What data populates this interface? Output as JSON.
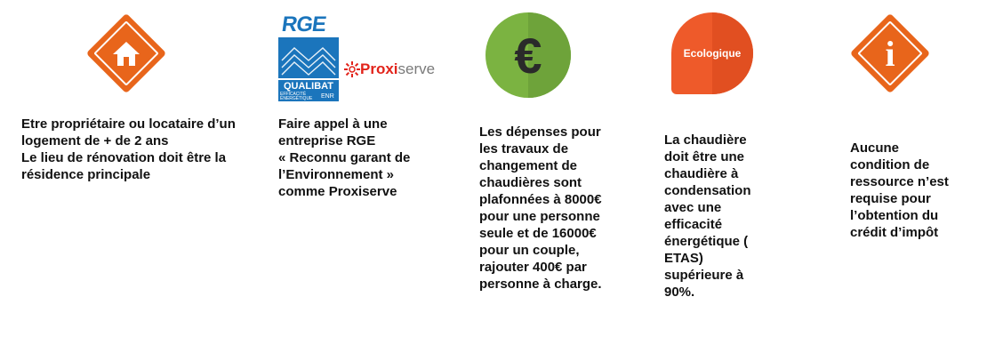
{
  "colors": {
    "orange": "#e8651b",
    "green": "#7bb341",
    "red_orange": "#ee5a2a",
    "rge_blue": "#1b75bc",
    "proxiserve_red": "#e2231a"
  },
  "items": [
    {
      "icon": "home-icon",
      "text": "Etre propriétaire ou locataire d’un\nlogement de + de 2 ans\nLe lieu de rénovation doit être la\nrésidence principale"
    },
    {
      "icon": "rge-qualibat-logo",
      "logo_rge": "RGE",
      "logo_qualibat": "QUALIBAT",
      "logo_efficacite": "EFFICACITÉ\nÉNERGÉTIQUE",
      "logo_enr": "ENR",
      "logo_proxi": "Proxi",
      "logo_serve": "serve",
      "text": "Faire appel à une\nentreprise RGE\n«  Reconnu garant de\nl’Environnement »\ncomme Proxiserve"
    },
    {
      "icon": "euro-icon",
      "symbol": "€",
      "text": "Les dépenses pour\nles travaux de\nchangement de\nchaudières sont\nplafonnées à 8000€\npour une personne\nseule et de 16000€\npour un couple,\nrajouter 400€ par\npersonne à charge."
    },
    {
      "icon": "ecologique-badge",
      "label": "Ecologique",
      "text": "La chaudière\ndoit être une\nchaudière à\ncondensation\navec une\nefficacité\nénergétique  (\nETAS)\nsupérieure à\n90%."
    },
    {
      "icon": "info-icon",
      "symbol": "i",
      "text": "Aucune\ncondition de\nressource n’est\nrequise pour\nl’obtention du\ncrédit d’impôt"
    }
  ]
}
